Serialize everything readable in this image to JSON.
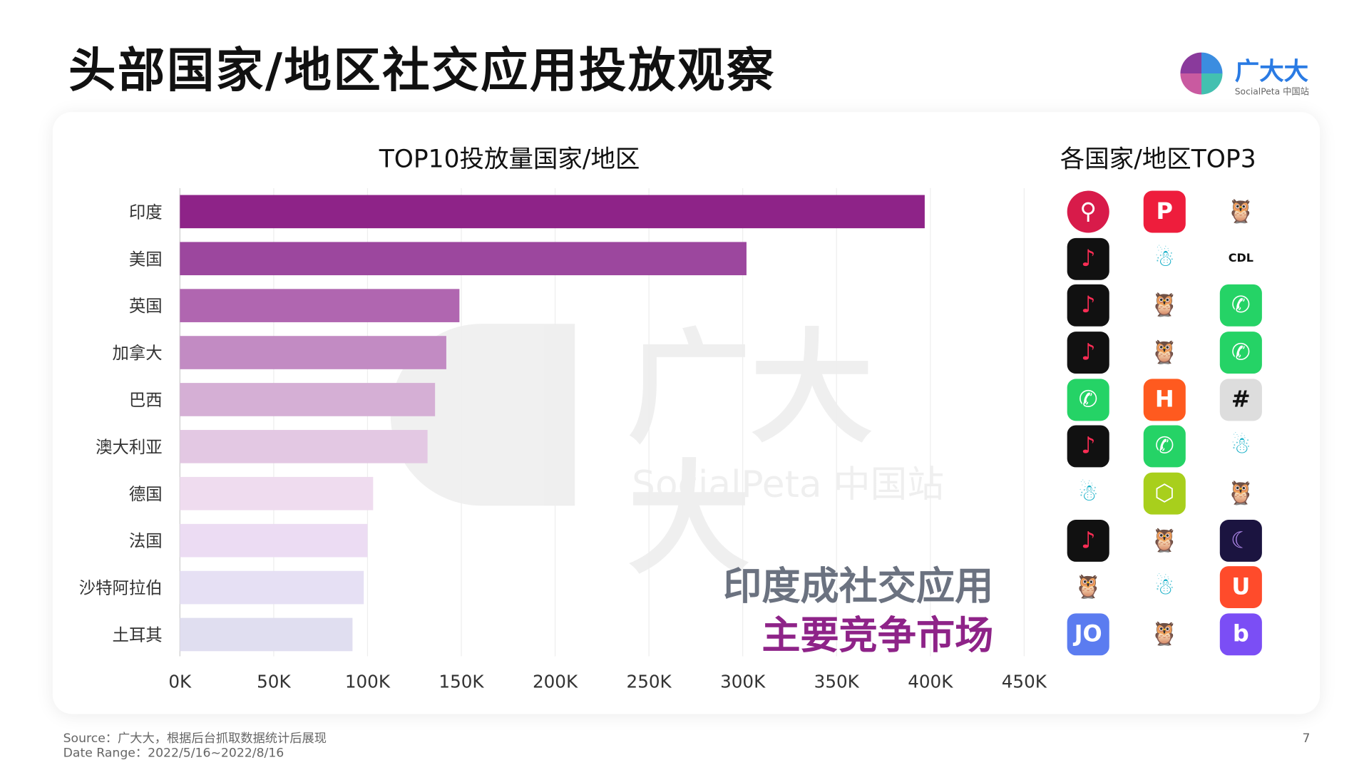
{
  "header": {
    "title": "头部国家/地区社交应用投放观察",
    "logo_text": "广大大",
    "logo_sub": "SocialPeta 中国站"
  },
  "chart_title": "TOP10投放量国家/地区",
  "top3_title": "各国家/地区TOP3",
  "watermark": {
    "text": "广大大",
    "sub": "SocialPeta 中国站"
  },
  "callout": {
    "line1": "印度成社交应用",
    "line2": "主要竞争市场",
    "line1_color": "#6b7280",
    "line2_color": "#8e2388"
  },
  "chart_data": {
    "type": "bar",
    "orientation": "horizontal",
    "title": "TOP10投放量国家/地区",
    "categories": [
      "印度",
      "美国",
      "英国",
      "加拿大",
      "巴西",
      "澳大利亚",
      "德国",
      "法国",
      "沙特阿拉伯",
      "土耳其"
    ],
    "values": [
      397000,
      302000,
      149000,
      142000,
      136000,
      132000,
      103000,
      100000,
      98000,
      92000
    ],
    "colors": [
      "#8e2388",
      "#9c479e",
      "#b066b0",
      "#c28bc3",
      "#d5afd5",
      "#e3c8e3",
      "#efdcef",
      "#ecdcf3",
      "#e6e0f4",
      "#e0def0"
    ],
    "xlim": [
      0,
      450000
    ],
    "xticks": [
      "0K",
      "50K",
      "100K",
      "150K",
      "200K",
      "250K",
      "300K",
      "350K",
      "400K",
      "450K"
    ],
    "grid": true
  },
  "top3_icons": [
    [
      "red-person-app",
      "red-p-app",
      "pink-owl-app"
    ],
    [
      "tiktok",
      "bigo-dino-app",
      "cdl-life-app"
    ],
    [
      "tiktok",
      "pink-owl-app",
      "whatsapp"
    ],
    [
      "tiktok",
      "pink-owl-app",
      "whatsapp"
    ],
    [
      "whatsapp",
      "helo-app",
      "camera-app"
    ],
    [
      "tiktok",
      "whatsapp",
      "bigo-dino-app"
    ],
    [
      "bigo-dino-app",
      "green-cube-app",
      "pink-owl-app"
    ],
    [
      "tiktok",
      "pink-owl-app",
      "moon-app"
    ],
    [
      "pink-owl-app",
      "bigo-dino-app",
      "orange-u-app"
    ],
    [
      "joojoo-app",
      "pink-owl-app",
      "purple-b-app"
    ]
  ],
  "footer": {
    "source": "Source：广大大，根据后台抓取数据统计后展现",
    "date_range": "Date Range：2022/5/16~2022/8/16",
    "page": "7"
  }
}
